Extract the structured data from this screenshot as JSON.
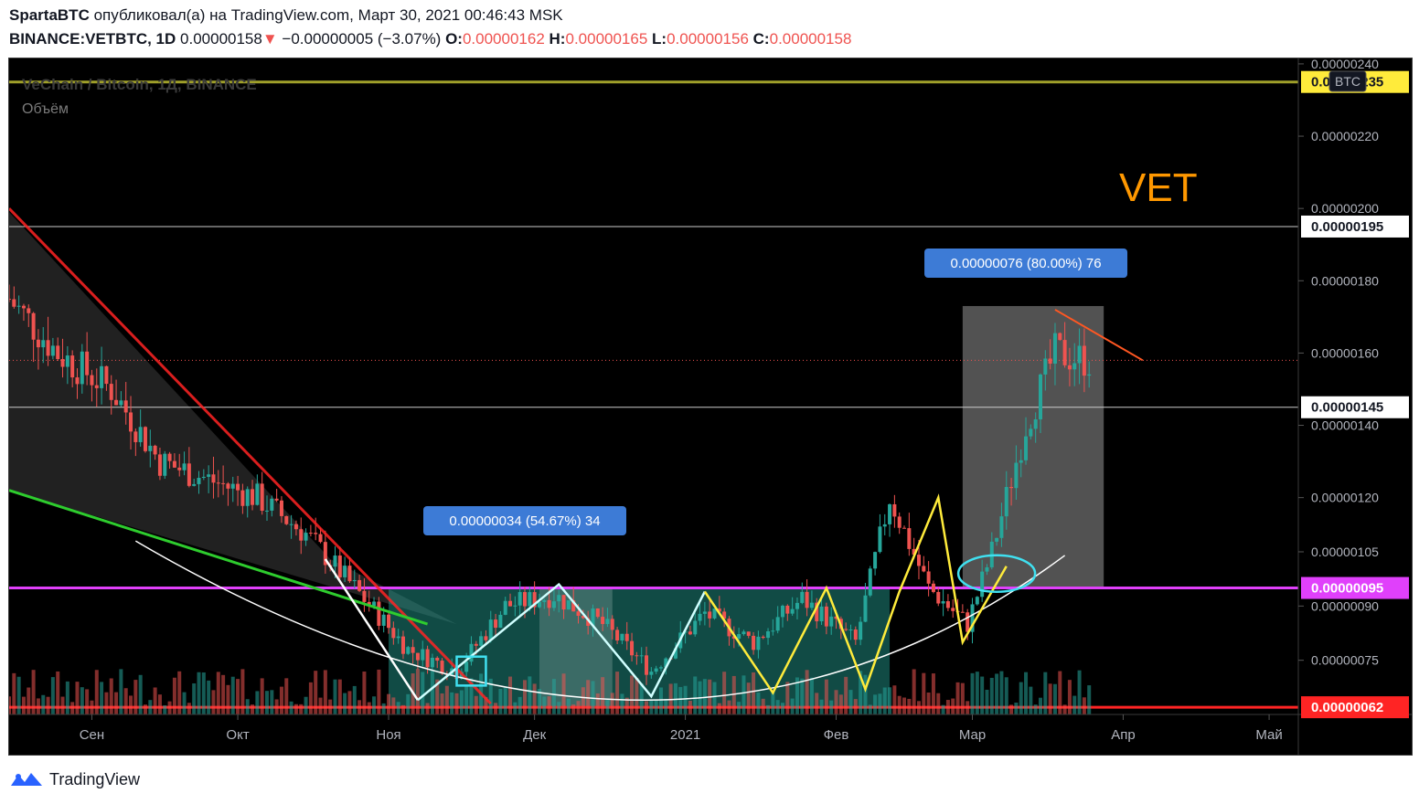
{
  "header": {
    "author": "SpartaBTC",
    "published_text": "опубликовал(а) на TradingView.com, Март 30, 2021 00:46:43 MSK",
    "symbol": "BINANCE:VETBTC, 1D",
    "last": "0.00000158",
    "change_arrow": "▼",
    "change": "−0.00000005 (−3.07%)",
    "o_label": "O:",
    "o_value": "0.00000162",
    "h_label": "H:",
    "h_value": "0.00000165",
    "l_label": "L:",
    "l_value": "0.00000156",
    "c_label": "C:",
    "c_value": "0.00000158"
  },
  "overlay": {
    "symbol_title": "VeChain / Bitcoin, 1Д, BINANCE",
    "volume_label": "Объём",
    "vet_label": "VET",
    "currency_badge": "BTC",
    "measure_1": "0.00000034 (54.67%) 34",
    "measure_2": "0.00000076 (80.00%) 76"
  },
  "footer": {
    "brand": "TradingView"
  },
  "colors": {
    "up": "#26a69a",
    "down": "#ef5350",
    "magenta": "#e040fb",
    "red_line": "#ff2424",
    "green_line": "#2ecc2e",
    "yellow": "#ffeb3b",
    "cyan": "#40e0f0",
    "olive": "#a0a02a",
    "vet": "#ff9800"
  },
  "chart_data": {
    "type": "candlestick",
    "y_axis_ticks": [
      "0.00000240",
      "0.00000220",
      "0.00000200",
      "0.00000180",
      "0.00000160",
      "0.00000140",
      "0.00000120",
      "0.00000105",
      "0.00000090",
      "0.00000075"
    ],
    "ylim": [
      6e-07,
      2.415e-06
    ],
    "x_ticks": [
      "Сен",
      "Окт",
      "Ноя",
      "Дек",
      "2021",
      "Фев",
      "Мар",
      "Апр",
      "Май"
    ],
    "x_range": [
      "2020-08-15",
      "2021-05-07"
    ],
    "horizontal_levels": [
      {
        "price": 2.35e-06,
        "label": "0.00000235",
        "color": "#a0a02a"
      },
      {
        "price": 1.95e-06,
        "label": "0.00000195",
        "color": "#cccccc"
      },
      {
        "price": 1.45e-06,
        "label": "0.00000145",
        "color": "#cccccc"
      },
      {
        "price": 9.5e-07,
        "label": "0.00000095",
        "color": "#e040fb"
      },
      {
        "price": 6.2e-07,
        "label": "0.00000062",
        "color": "#ff2424"
      }
    ],
    "last_price": 1.58e-06,
    "series": [
      {
        "name": "",
        "x": [
          "2020-08-15",
          "2020-08-25",
          "2020-09-05",
          "2020-09-15",
          "2020-09-25",
          "2020-10-05",
          "2020-10-15",
          "2020-10-25",
          "2020-11-05",
          "2020-11-15",
          "2020-11-25",
          "2020-12-05",
          "2020-12-15",
          "2020-12-25",
          "2021-01-05",
          "2021-01-15",
          "2021-01-25",
          "2021-02-05",
          "2021-02-12",
          "2021-02-20",
          "2021-02-28",
          "2021-03-05",
          "2021-03-12",
          "2021-03-18",
          "2021-03-25"
        ],
        "close": [
          1.75e-06,
          1.6e-06,
          1.5e-06,
          1.3e-06,
          1.25e-06,
          1.2e-06,
          1.1e-06,
          9.5e-07,
          7.8e-07,
          7.2e-07,
          9e-07,
          9.3e-07,
          8.5e-07,
          7.2e-07,
          8.8e-07,
          8e-07,
          9.2e-07,
          8e-07,
          1.2e-06,
          9.5e-07,
          8.5e-07,
          1.05e-06,
          1.4e-06,
          1.6e-06,
          1.58e-06
        ]
      }
    ]
  }
}
